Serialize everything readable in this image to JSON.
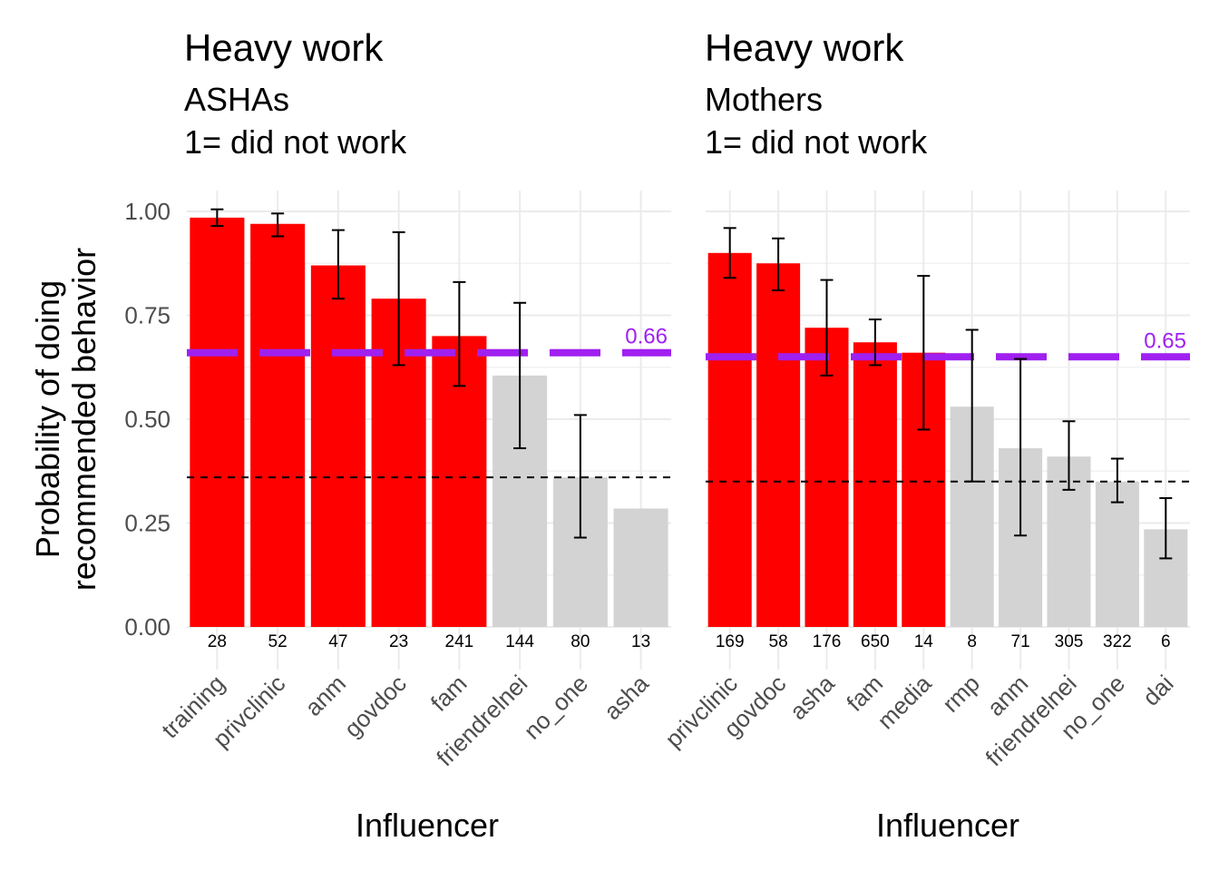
{
  "chart_data": [
    {
      "type": "bar",
      "title": "Heavy work",
      "subtitle": [
        "ASHAs",
        "1= did not work"
      ],
      "xlabel": "Influencer",
      "ylabel": "Probability of doing\nrecommended behavior",
      "ylim": [
        0,
        1.05
      ],
      "yticks": [
        0.0,
        0.25,
        0.5,
        0.75,
        1.0
      ],
      "ytick_labels": [
        "0.00",
        "0.25",
        "0.50",
        "0.75",
        "1.00"
      ],
      "categories": [
        "training",
        "privclinic",
        "anm",
        "govdoc",
        "fam",
        "friendrelnei",
        "no_one",
        "asha"
      ],
      "values": [
        0.985,
        0.97,
        0.87,
        0.79,
        0.7,
        0.605,
        0.36,
        0.285
      ],
      "ci_low": [
        0.965,
        0.94,
        0.79,
        0.63,
        0.58,
        0.43,
        0.215,
        null
      ],
      "ci_high": [
        1.005,
        0.995,
        0.955,
        0.95,
        0.83,
        0.78,
        0.51,
        null
      ],
      "n": [
        "28",
        "52",
        "47",
        "23",
        "241",
        "144",
        "80",
        "13"
      ],
      "highlight": [
        true,
        true,
        true,
        true,
        true,
        false,
        false,
        false
      ],
      "reference_line": {
        "value": 0.66,
        "label": "0.66",
        "style": "long-dash",
        "color": "#a020f0"
      },
      "baseline_line": {
        "value": 0.36,
        "style": "dashed",
        "color": "#000000"
      },
      "colors": {
        "highlight": "#ff0000",
        "other": "#d3d3d3"
      },
      "grid": true
    },
    {
      "type": "bar",
      "title": "Heavy work",
      "subtitle": [
        "Mothers",
        "1= did not work"
      ],
      "xlabel": "Influencer",
      "ylim": [
        0,
        1.05
      ],
      "yticks": [
        0.0,
        0.25,
        0.5,
        0.75,
        1.0
      ],
      "categories": [
        "privclinic",
        "govdoc",
        "asha",
        "fam",
        "media",
        "rmp",
        "anm",
        "friendrelnei",
        "no_one",
        "dai"
      ],
      "values": [
        0.9,
        0.875,
        0.72,
        0.685,
        0.66,
        0.53,
        0.43,
        0.41,
        0.35,
        0.235
      ],
      "ci_low": [
        0.84,
        0.81,
        0.605,
        0.63,
        0.475,
        0.35,
        0.22,
        0.33,
        0.3,
        0.165
      ],
      "ci_high": [
        0.96,
        0.935,
        0.835,
        0.74,
        0.845,
        0.715,
        0.645,
        0.495,
        0.405,
        0.31
      ],
      "n": [
        "169",
        "58",
        "176",
        "650",
        "14",
        "8",
        "71",
        "305",
        "322",
        "6"
      ],
      "highlight": [
        true,
        true,
        true,
        true,
        true,
        false,
        false,
        false,
        false,
        false
      ],
      "reference_line": {
        "value": 0.65,
        "label": "0.65",
        "style": "long-dash",
        "color": "#a020f0"
      },
      "baseline_line": {
        "value": 0.35,
        "style": "dashed",
        "color": "#000000"
      },
      "colors": {
        "highlight": "#ff0000",
        "other": "#d3d3d3"
      },
      "grid": true
    }
  ]
}
